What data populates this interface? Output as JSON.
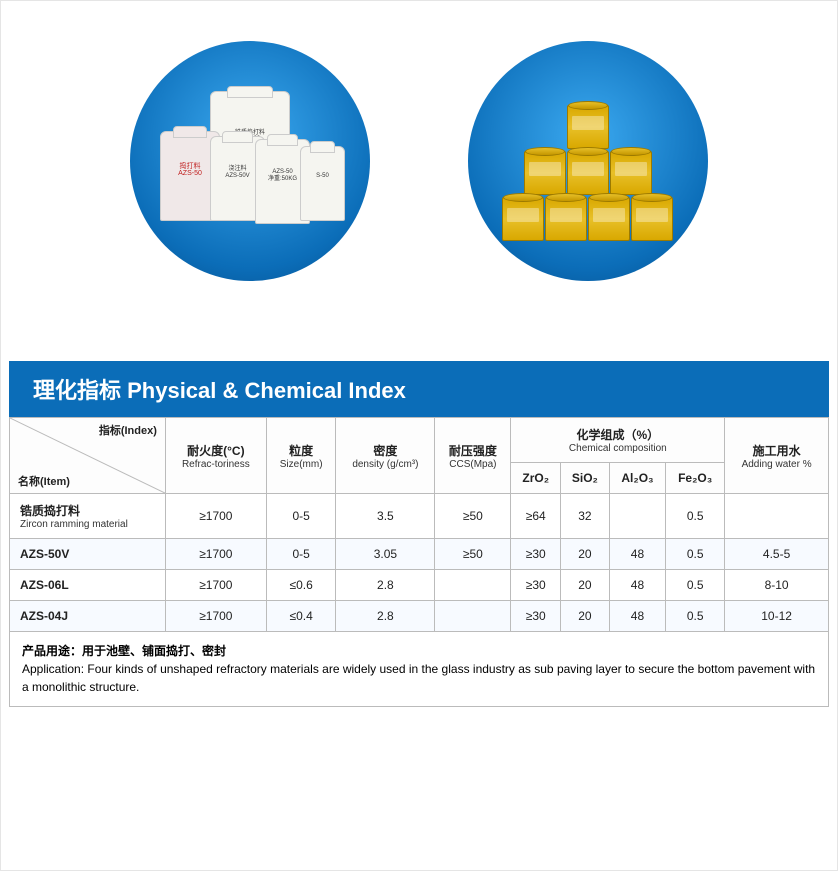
{
  "section_title": "理化指标 Physical & Chemical Index",
  "header": {
    "index_label": "指标(Index)",
    "item_label": "名称(Item)",
    "refrac_cn": "耐火度(°C)",
    "refrac_en": "Refrac-toriness",
    "size_cn": "粒度",
    "size_en": "Size(mm)",
    "density_cn": "密度",
    "density_en": "density (g/cm³)",
    "ccs_cn": "耐压强度",
    "ccs_en": "CCS(Mpa)",
    "chem_cn": "化学组成（%）",
    "chem_en": "Chemical composition",
    "zro": "ZrO₂",
    "sio": "SiO₂",
    "alo": "Al₂O₃",
    "feo": "Fe₂O₃",
    "water_cn": "施工用水",
    "water_en": "Adding water %"
  },
  "rows": [
    {
      "name_cn": "锆质捣打料",
      "name_en": "Zircon ramming material",
      "refrac": "≥1700",
      "size": "0-5",
      "density": "3.5",
      "ccs": "≥50",
      "zro": "≥64",
      "sio": "32",
      "alo": "",
      "feo": "0.5",
      "water": ""
    },
    {
      "name_cn": "AZS-50V",
      "name_en": "",
      "refrac": "≥1700",
      "size": "0-5",
      "density": "3.05",
      "ccs": "≥50",
      "zro": "≥30",
      "sio": "20",
      "alo": "48",
      "feo": "0.5",
      "water": "4.5-5"
    },
    {
      "name_cn": "AZS-06L",
      "name_en": "",
      "refrac": "≥1700",
      "size": "≤0.6",
      "density": "2.8",
      "ccs": "",
      "zro": "≥30",
      "sio": "20",
      "alo": "48",
      "feo": "0.5",
      "water": "8-10"
    },
    {
      "name_cn": "AZS-04J",
      "name_en": "",
      "refrac": "≥1700",
      "size": "≤0.4",
      "density": "2.8",
      "ccs": "",
      "zro": "≥30",
      "sio": "20",
      "alo": "48",
      "feo": "0.5",
      "water": "10-12"
    }
  ],
  "footer": {
    "cn": "产品用途：用于池壁、铺面捣打、密封",
    "en": "Application: Four kinds of unshaped refractory materials are widely used in the glass industry as sub paving layer to secure the bottom pavement with a monolithic structure."
  },
  "colors": {
    "header_bg": "#0b6db8",
    "border": "#bbbbbb"
  }
}
